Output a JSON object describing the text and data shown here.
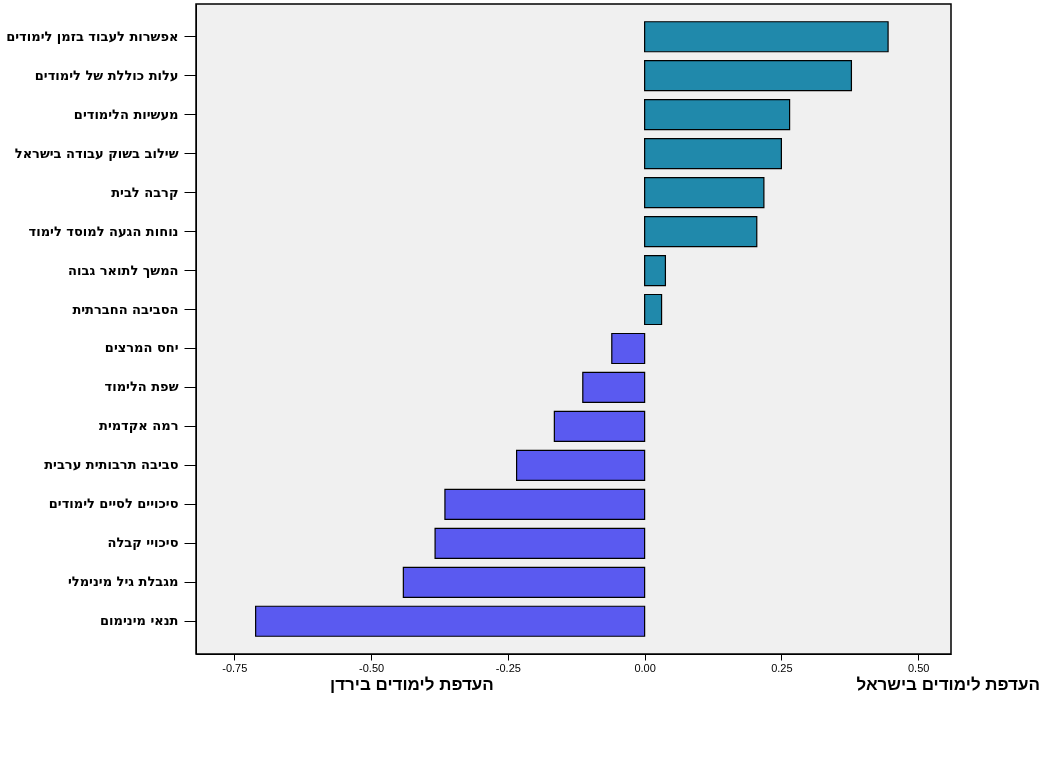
{
  "chart_data": {
    "type": "bar",
    "orientation": "horizontal",
    "categories": [
      "אפשרות לעבוד בזמן לימודים",
      "עלות כוללת של לימודים",
      "מעשיות הלימודים",
      "שילוב בשוק עבודה בישראל",
      "קרבה לבית",
      "נוחות הגעה למוסד לימוד",
      "המשך לתואר גבוה",
      "הסביבה החברתית",
      "יחס המרצים",
      "שפת הלימוד",
      "רמה אקדמית",
      "סביבה תרבותית ערבית",
      "סיכויים לסיים לימודים",
      "סיכויי קבלה",
      "מגבלת גיל מינימלי",
      "תנאי מינימום"
    ],
    "values": [
      0.445,
      0.378,
      0.265,
      0.25,
      0.218,
      0.205,
      0.038,
      0.031,
      -0.06,
      -0.113,
      -0.165,
      -0.234,
      -0.365,
      -0.383,
      -0.441,
      -0.711
    ],
    "colors": [
      "#2089ab",
      "#2089ab",
      "#2089ab",
      "#2089ab",
      "#2089ab",
      "#2089ab",
      "#2089ab",
      "#2089ab",
      "#5a5af0",
      "#5a5af0",
      "#5a5af0",
      "#5a5af0",
      "#5a5af0",
      "#5a5af0",
      "#5a5af0",
      "#5a5af0"
    ],
    "xlim": [
      -0.82,
      0.56
    ],
    "xticks": [
      {
        "value": -0.75,
        "label": "-0.75"
      },
      {
        "value": -0.5,
        "label": "-0.50"
      },
      {
        "value": -0.25,
        "label": "-0.25"
      },
      {
        "value": 0,
        "label": "0.00"
      },
      {
        "value": 0.25,
        "label": "0.25"
      },
      {
        "value": 0.5,
        "label": "0.50"
      }
    ],
    "annotations": [
      "העדפת לימודים בירדן",
      "העדפת לימודים בישראל"
    ],
    "grid": false,
    "legend": false
  }
}
